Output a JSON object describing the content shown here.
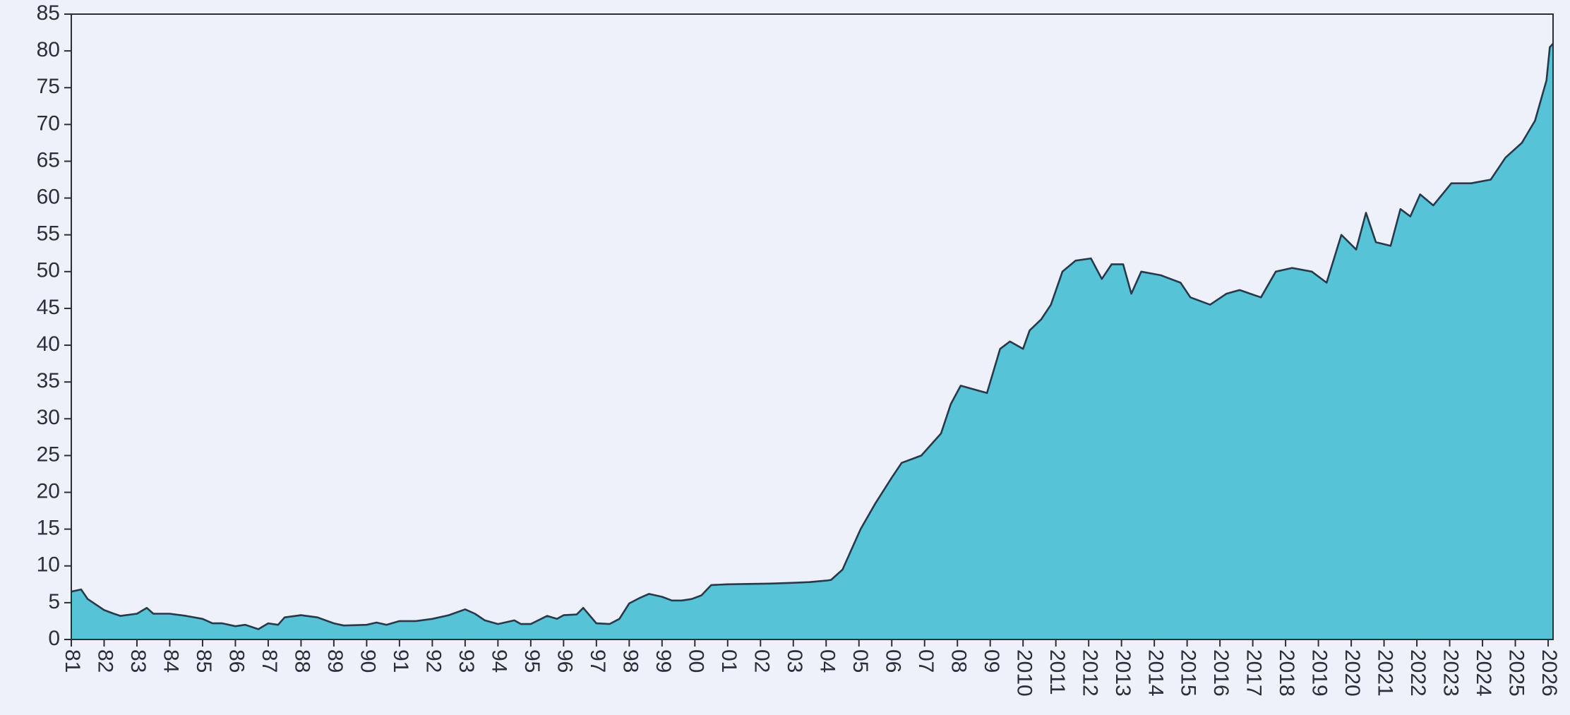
{
  "chart_data": {
    "type": "area",
    "color": "#56c3d6",
    "line_color": "#27394a",
    "xlim": [
      1981,
      2026.15
    ],
    "ylim": [
      0,
      85
    ],
    "yticks": [
      0,
      5,
      10,
      15,
      20,
      25,
      30,
      35,
      40,
      45,
      50,
      55,
      60,
      65,
      70,
      75,
      80,
      85
    ],
    "xticks": [
      {
        "value": 1981,
        "label": "81"
      },
      {
        "value": 1982,
        "label": "82"
      },
      {
        "value": 1983,
        "label": "83"
      },
      {
        "value": 1984,
        "label": "84"
      },
      {
        "value": 1985,
        "label": "85"
      },
      {
        "value": 1986,
        "label": "86"
      },
      {
        "value": 1987,
        "label": "87"
      },
      {
        "value": 1988,
        "label": "88"
      },
      {
        "value": 1989,
        "label": "89"
      },
      {
        "value": 1990,
        "label": "90"
      },
      {
        "value": 1991,
        "label": "91"
      },
      {
        "value": 1992,
        "label": "92"
      },
      {
        "value": 1993,
        "label": "93"
      },
      {
        "value": 1994,
        "label": "94"
      },
      {
        "value": 1995,
        "label": "95"
      },
      {
        "value": 1996,
        "label": "96"
      },
      {
        "value": 1997,
        "label": "97"
      },
      {
        "value": 1998,
        "label": "98"
      },
      {
        "value": 1999,
        "label": "99"
      },
      {
        "value": 2000,
        "label": "00"
      },
      {
        "value": 2001,
        "label": "01"
      },
      {
        "value": 2002,
        "label": "02"
      },
      {
        "value": 2003,
        "label": "03"
      },
      {
        "value": 2004,
        "label": "04"
      },
      {
        "value": 2005,
        "label": "05"
      },
      {
        "value": 2006,
        "label": "06"
      },
      {
        "value": 2007,
        "label": "07"
      },
      {
        "value": 2008,
        "label": "08"
      },
      {
        "value": 2009,
        "label": "09"
      },
      2010,
      2011,
      2012,
      2013,
      2014,
      2015,
      2016,
      2017,
      2018,
      2019,
      2020,
      2021,
      2022,
      2023,
      2024,
      2025,
      2026
    ],
    "x": [
      1981,
      1981.3,
      1981.5,
      1982,
      1982.3,
      1982.5,
      1983,
      1983.3,
      1983.5,
      1984,
      1984.5,
      1985,
      1985.3,
      1985.6,
      1986,
      1986.3,
      1986.7,
      1987,
      1987.3,
      1987.5,
      1988,
      1988.5,
      1989,
      1989.3,
      1990,
      1990.3,
      1990.6,
      1991,
      1991.5,
      1992,
      1992.5,
      1993,
      1993.3,
      1993.6,
      1994,
      1994.3,
      1994.5,
      1994.7,
      1995,
      1995.5,
      1995.8,
      1996,
      1996.4,
      1996.6,
      1997,
      1997.4,
      1997.7,
      1998,
      1998.3,
      1998.6,
      1999,
      1999.3,
      1999.6,
      1999.9,
      2000.2,
      2000.5,
      2001,
      2002.3,
      2003,
      2003.5,
      2004,
      2004.15,
      2004.5,
      2004.75,
      2005.05,
      2005.5,
      2006,
      2006.3,
      2006.9,
      2007.5,
      2007.8,
      2008.1,
      2008.5,
      2008.9,
      2009.3,
      2009.6,
      2010,
      2010.2,
      2010.55,
      2010.85,
      2011.2,
      2011.6,
      2012.07,
      2012.4,
      2012.7,
      2013.05,
      2013.3,
      2013.6,
      2014.2,
      2014.8,
      2015.1,
      2015.7,
      2016.2,
      2016.6,
      2017.25,
      2017.7,
      2018.2,
      2018.8,
      2019.25,
      2019.7,
      2020.15,
      2020.45,
      2020.75,
      2021.2,
      2021.5,
      2021.8,
      2022.1,
      2022.5,
      2023.05,
      2023.65,
      2024.25,
      2024.7,
      2025.2,
      2025.6,
      2025.95,
      2026.05,
      2026.15
    ],
    "values": [
      6.5,
      6.8,
      5.5,
      4,
      3.5,
      3.2,
      3.5,
      4.3,
      3.5,
      3.5,
      3.2,
      2.8,
      2.2,
      2.2,
      1.8,
      2,
      1.4,
      2.2,
      2,
      3,
      3.3,
      3,
      2.2,
      1.9,
      2,
      2.3,
      2,
      2.5,
      2.5,
      2.8,
      3.3,
      4.1,
      3.5,
      2.6,
      2.1,
      2.4,
      2.6,
      2.1,
      2.1,
      3.2,
      2.8,
      3.3,
      3.4,
      4.3,
      2.2,
      2.1,
      2.8,
      4.9,
      5.6,
      6.2,
      5.8,
      5.3,
      5.3,
      5.5,
      6,
      7.4,
      7.5,
      7.6,
      7.7,
      7.8,
      8,
      8.1,
      9.5,
      12,
      15,
      18.5,
      22,
      24,
      25,
      28,
      32,
      34.5,
      34,
      33.5,
      39.5,
      40.5,
      39.5,
      42,
      43.5,
      45.5,
      50,
      51.5,
      51.8,
      49,
      51,
      51,
      47,
      50,
      49.5,
      48.5,
      46.5,
      45.5,
      47,
      47.5,
      46.5,
      50,
      50.5,
      50,
      48.5,
      55,
      53,
      58,
      54,
      53.5,
      58.5,
      57.5,
      60.5,
      59,
      62,
      62,
      62.5,
      65.5,
      67.5,
      70.5,
      76,
      80.5,
      81
    ]
  }
}
